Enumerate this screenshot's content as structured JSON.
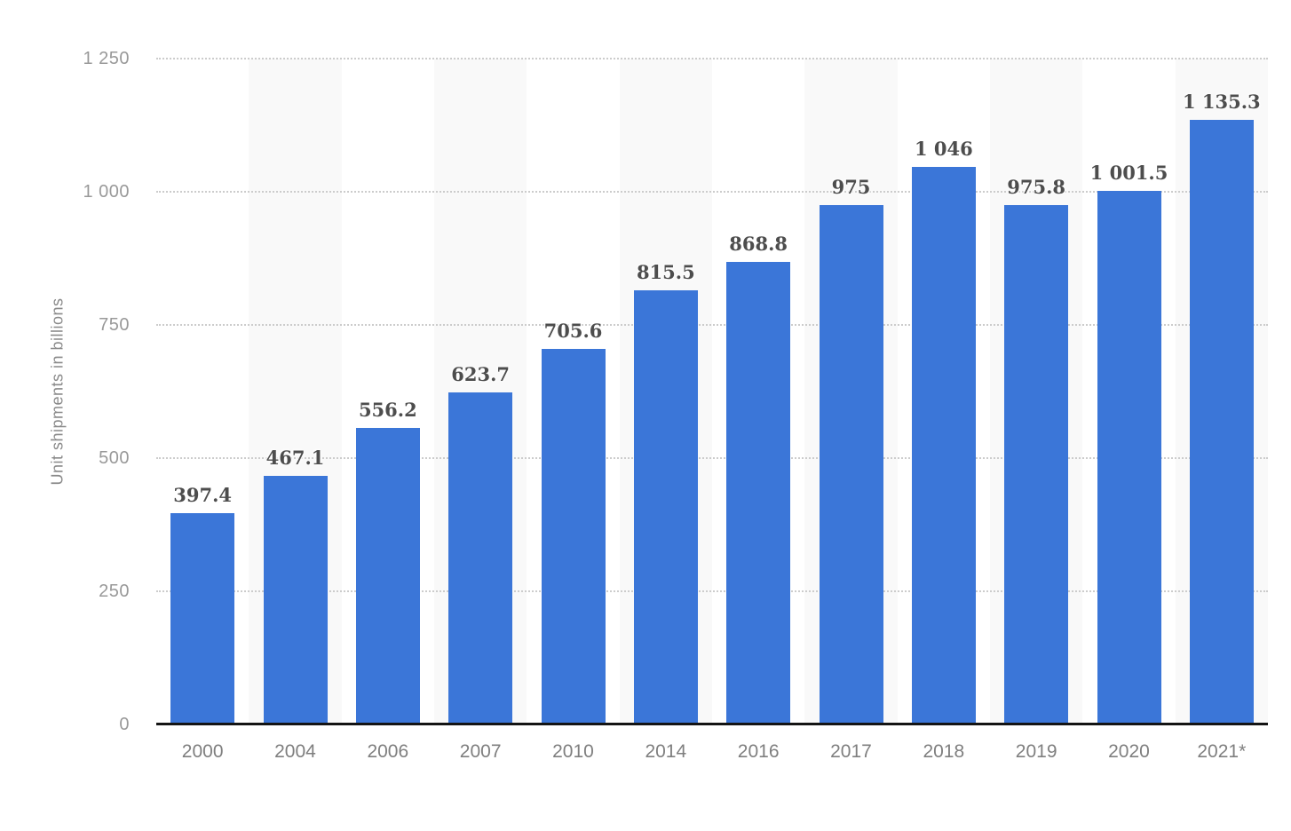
{
  "chart_data": {
    "type": "bar",
    "categories": [
      "2000",
      "2004",
      "2006",
      "2007",
      "2010",
      "2014",
      "2016",
      "2017",
      "2018",
      "2019",
      "2020",
      "2021*"
    ],
    "values": [
      397.4,
      467.1,
      556.2,
      623.7,
      705.6,
      815.5,
      868.8,
      975,
      1046,
      975.8,
      1001.5,
      1135.3
    ],
    "value_labels": [
      "397.4",
      "467.1",
      "556.2",
      "623.7",
      "705.6",
      "815.5",
      "868.8",
      "975",
      "1 046",
      "975.8",
      "1 001.5",
      "1 135.3"
    ],
    "title": "",
    "xlabel": "",
    "ylabel": "Unit shipments in billions",
    "ylim": [
      0,
      1250
    ],
    "yticks": [
      0,
      250,
      500,
      750,
      1000,
      1250
    ],
    "ytick_labels": [
      "0",
      "250",
      "500",
      "750",
      "1 000",
      "1 250"
    ],
    "grid": "horizontal-dotted",
    "legend": "none",
    "plot_background": "alternating-column-bands"
  },
  "colors": {
    "bar": "#3b76d8",
    "band": "#f9f9f9",
    "gridline": "#cccccc",
    "axis_line": "#141414",
    "value_label": "#4d4d4d",
    "tick_label": "#999999",
    "x_tick_label": "#7f7f7f",
    "y_title": "#8a8a8a",
    "background": "#ffffff"
  }
}
